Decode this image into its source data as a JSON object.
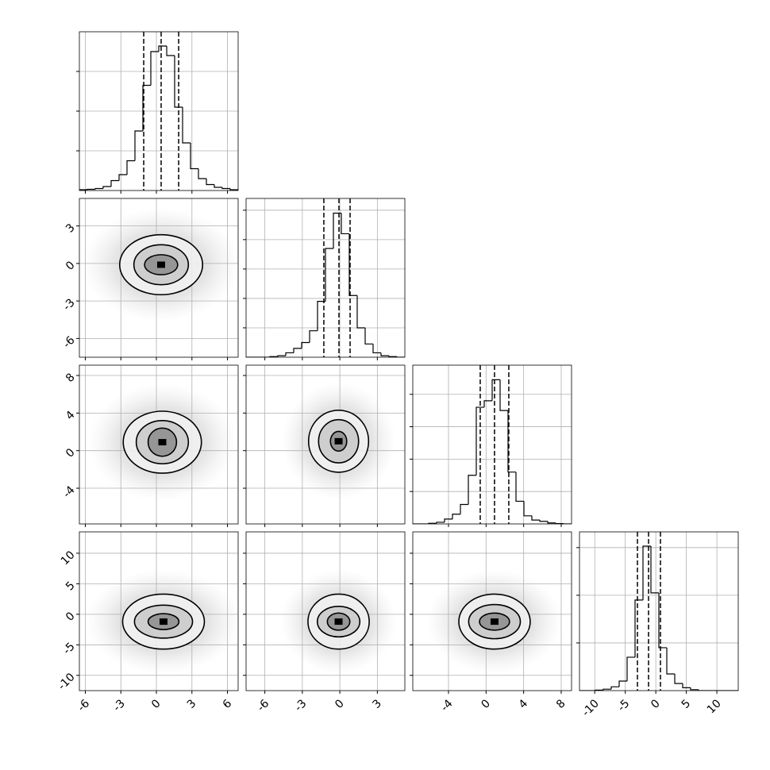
{
  "chart_data": {
    "type": "corner",
    "parameters": [
      {
        "lim": [
          -6.5,
          6.9
        ],
        "ticks": [
          -6,
          -3,
          0,
          3,
          6
        ]
      },
      {
        "lim": [
          -7.5,
          5.2
        ],
        "ticks": [
          -6,
          -3,
          0,
          3
        ]
      },
      {
        "lim": [
          -7.8,
          9.1
        ],
        "ticks": [
          -4,
          0,
          4,
          8
        ]
      },
      {
        "lim": [
          -12.5,
          13.5
        ],
        "ticks": [
          -10,
          -5,
          0,
          5,
          10
        ]
      }
    ],
    "histograms": [
      {
        "bins": [
          -6.5,
          -5.83,
          -5.16,
          -4.49,
          -3.82,
          -3.15,
          -2.48,
          -1.81,
          -1.14,
          -0.47,
          0.2,
          0.87,
          1.54,
          2.21,
          2.88,
          3.55,
          4.22,
          4.89,
          5.56,
          6.23,
          6.9
        ],
        "values": [
          0.02,
          0.03,
          0.05,
          0.1,
          0.25,
          0.4,
          0.75,
          1.5,
          2.65,
          3.5,
          3.64,
          3.4,
          2.1,
          1.2,
          0.55,
          0.3,
          0.15,
          0.08,
          0.05,
          0.02
        ],
        "ylim": [
          0,
          4
        ],
        "yticks": [
          1,
          2,
          3
        ],
        "quantiles": [
          -1.07,
          0.4,
          1.88
        ]
      },
      {
        "bins": [
          -7.5,
          -6.865,
          -6.23,
          -5.595,
          -4.96,
          -4.325,
          -3.69,
          -3.055,
          -2.42,
          -1.785,
          -1.15,
          -0.515,
          0.12,
          0.755,
          1.39,
          2.025,
          2.66,
          3.295,
          3.93,
          4.565,
          5.2
        ],
        "values": [
          0,
          0,
          0,
          0.02,
          0.05,
          0.15,
          0.3,
          0.5,
          0.9,
          1.9,
          3.7,
          4.9,
          4.2,
          2.1,
          1.0,
          0.45,
          0.15,
          0.05,
          0.02,
          0
        ],
        "ylim": [
          0,
          5.4
        ],
        "yticks": [
          1,
          2,
          3,
          4,
          5
        ],
        "quantiles": [
          -1.28,
          -0.07,
          0.82
        ]
      },
      {
        "bins": [
          -7.8,
          -6.955,
          -6.11,
          -5.265,
          -4.42,
          -3.575,
          -2.73,
          -1.885,
          -1.04,
          -0.195,
          0.65,
          1.495,
          2.34,
          3.185,
          4.03,
          4.875,
          5.72,
          6.565,
          7.41,
          8.255,
          9.1
        ],
        "values": [
          0,
          0,
          0.02,
          0.05,
          0.15,
          0.3,
          0.6,
          1.5,
          3.6,
          3.8,
          4.45,
          3.5,
          1.6,
          0.7,
          0.25,
          0.12,
          0.08,
          0.03,
          0.01,
          0
        ],
        "ylim": [
          0,
          4.9
        ],
        "yticks": [
          1,
          2,
          3,
          4
        ],
        "quantiles": [
          -0.62,
          0.9,
          2.42
        ]
      },
      {
        "bins": [
          -12.5,
          -11.2,
          -9.9,
          -8.6,
          -7.3,
          -6,
          -4.7,
          -3.4,
          -2.1,
          -0.8,
          0.5,
          1.8,
          3.1,
          4.4,
          5.7,
          7,
          8.3,
          9.6,
          10.9,
          12.2,
          13.5
        ],
        "values": [
          0,
          0,
          0.01,
          0.03,
          0.08,
          0.2,
          0.7,
          1.9,
          3.03,
          2.05,
          0.9,
          0.35,
          0.15,
          0.06,
          0.02,
          0,
          0,
          0,
          0,
          0
        ],
        "ylim": [
          0,
          3.33
        ],
        "yticks": [
          1,
          2,
          3
        ],
        "quantiles": [
          -3.01,
          -1.19,
          0.76
        ]
      }
    ],
    "pairs": [
      {
        "center": [
          0.4,
          -0.1
        ],
        "contours": [
          {
            "rx": 3.5,
            "ry": 2.4
          },
          {
            "rx": 2.3,
            "ry": 1.6
          },
          {
            "rx": 1.4,
            "ry": 0.8
          }
        ]
      },
      {
        "center": [
          0.5,
          0.9
        ],
        "contours": [
          {
            "rx": 3.3,
            "ry": 3.3
          },
          {
            "rx": 2.2,
            "ry": 2.3
          },
          {
            "rx": 1.2,
            "ry": 1.5
          }
        ]
      },
      {
        "center": [
          -0.1,
          1.0
        ],
        "contours": [
          {
            "rx": 2.4,
            "ry": 3.3
          },
          {
            "rx": 1.6,
            "ry": 2.3
          },
          {
            "rx": 0.65,
            "ry": 1.05
          }
        ]
      },
      {
        "center": [
          0.6,
          -1.2
        ],
        "contours": [
          {
            "rx": 3.45,
            "ry": 4.5
          },
          {
            "rx": 2.45,
            "ry": 2.7
          },
          {
            "rx": 1.3,
            "ry": 1.3
          }
        ]
      },
      {
        "center": [
          -0.1,
          -1.2
        ],
        "contours": [
          {
            "rx": 2.45,
            "ry": 4.5
          },
          {
            "rx": 1.7,
            "ry": 2.5
          },
          {
            "rx": 0.9,
            "ry": 1.4
          }
        ]
      },
      {
        "center": [
          0.9,
          -1.2
        ],
        "contours": [
          {
            "rx": 3.8,
            "ry": 4.5
          },
          {
            "rx": 2.75,
            "ry": 2.8
          },
          {
            "rx": 1.6,
            "ry": 1.4
          }
        ]
      }
    ]
  }
}
